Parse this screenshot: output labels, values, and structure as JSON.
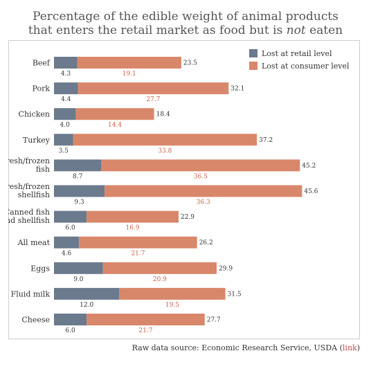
{
  "title": {
    "line1": "Percentage of the edible weight of animal products",
    "line2_prefix": "that enters the retail market as food but is ",
    "line2_emph": "not",
    "line2_suffix": " eaten"
  },
  "chart_data": {
    "type": "bar",
    "stacked": true,
    "orientation": "horizontal",
    "categories": [
      [
        "Beef"
      ],
      [
        "Pork"
      ],
      [
        "Chicken"
      ],
      [
        "Turkey"
      ],
      [
        "Fresh/frozen",
        "fish"
      ],
      [
        "Fresh/frozen",
        "shellfish"
      ],
      [
        "Canned fish",
        "and shellfish"
      ],
      [
        "All meat"
      ],
      [
        "Eggs"
      ],
      [
        "Fluid milk"
      ],
      [
        "Cheese"
      ]
    ],
    "series": [
      {
        "name": "Lost at retail level",
        "color": "#6b7a8c",
        "values": [
          4.3,
          4.4,
          4.0,
          3.5,
          8.7,
          9.3,
          6.0,
          4.6,
          9.0,
          12.0,
          6.0
        ]
      },
      {
        "name": "Lost at consumer level",
        "color": "#d9876a",
        "values": [
          19.1,
          27.7,
          14.4,
          33.8,
          36.5,
          36.3,
          16.9,
          21.7,
          20.9,
          19.5,
          21.7
        ]
      }
    ],
    "totals": [
      23.5,
      32.1,
      18.4,
      37.2,
      45.2,
      45.6,
      22.9,
      26.2,
      29.9,
      31.5,
      27.7
    ],
    "legend": "top-right",
    "grid": false
  },
  "source": {
    "text": "Raw data source: Economic Research Service, USDA (",
    "link": "link",
    "close": ")"
  }
}
